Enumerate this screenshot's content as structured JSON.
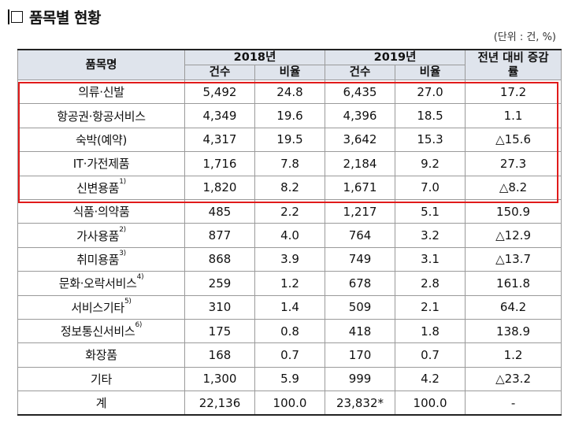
{
  "heading": {
    "title": "품목별 현황"
  },
  "unit": "(단위 : 건, %)",
  "table": {
    "header": {
      "item": "품목명",
      "y2018": "2018년",
      "y2019": "2019년",
      "change": "전년 대비 증감률",
      "count": "건수",
      "ratio": "비율"
    },
    "rows": [
      {
        "name": "의류·신발",
        "sup": "",
        "c18": "5,492",
        "r18": "24.8",
        "c19": "6,435",
        "r19": "27.0",
        "chg": "17.2"
      },
      {
        "name": "항공권·항공서비스",
        "sup": "",
        "c18": "4,349",
        "r18": "19.6",
        "c19": "4,396",
        "r19": "18.5",
        "chg": "1.1"
      },
      {
        "name": "숙박(예약)",
        "sup": "",
        "c18": "4,317",
        "r18": "19.5",
        "c19": "3,642",
        "r19": "15.3",
        "chg": "△15.6"
      },
      {
        "name": "IT·가전제품",
        "sup": "",
        "c18": "1,716",
        "r18": "7.8",
        "c19": "2,184",
        "r19": "9.2",
        "chg": "27.3"
      },
      {
        "name": "신변용품",
        "sup": "1)",
        "c18": "1,820",
        "r18": "8.2",
        "c19": "1,671",
        "r19": "7.0",
        "chg": "△8.2"
      },
      {
        "name": "식품·의약품",
        "sup": "",
        "c18": "485",
        "r18": "2.2",
        "c19": "1,217",
        "r19": "5.1",
        "chg": "150.9"
      },
      {
        "name": "가사용품",
        "sup": "2)",
        "c18": "877",
        "r18": "4.0",
        "c19": "764",
        "r19": "3.2",
        "chg": "△12.9"
      },
      {
        "name": "취미용품",
        "sup": "3)",
        "c18": "868",
        "r18": "3.9",
        "c19": "749",
        "r19": "3.1",
        "chg": "△13.7"
      },
      {
        "name": "문화·오락서비스",
        "sup": "4)",
        "c18": "259",
        "r18": "1.2",
        "c19": "678",
        "r19": "2.8",
        "chg": "161.8"
      },
      {
        "name": "서비스기타",
        "sup": "5)",
        "c18": "310",
        "r18": "1.4",
        "c19": "509",
        "r19": "2.1",
        "chg": "64.2"
      },
      {
        "name": "정보통신서비스",
        "sup": "6)",
        "c18": "175",
        "r18": "0.8",
        "c19": "418",
        "r19": "1.8",
        "chg": "138.9"
      },
      {
        "name": "화장품",
        "sup": "",
        "c18": "168",
        "r18": "0.7",
        "c19": "170",
        "r19": "0.7",
        "chg": "1.2"
      },
      {
        "name": "기타",
        "sup": "",
        "c18": "1,300",
        "r18": "5.9",
        "c19": "999",
        "r19": "4.2",
        "chg": "△23.2"
      },
      {
        "name": "계",
        "sup": "",
        "c18": "22,136",
        "r18": "100.0",
        "c19": "23,832*",
        "r19": "100.0",
        "chg": "-"
      }
    ]
  },
  "highlight": {
    "color": "#e01b1b",
    "rows_highlighted": 5
  }
}
